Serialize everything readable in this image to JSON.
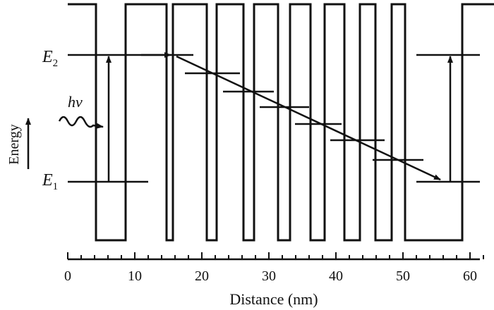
{
  "figure": {
    "energy_label": "Energy",
    "e2_symbol": "E",
    "e2_subscript": "2",
    "e1_symbol": "E",
    "e1_subscript": "1",
    "photon_label": "hν",
    "xlabel": "Distance (nm)",
    "x_ticks": [
      "0",
      "10",
      "20",
      "30",
      "40",
      "50",
      "60"
    ],
    "x_range": [
      0,
      62
    ],
    "colors": {
      "line": "#111111",
      "background": "#ffffff"
    }
  }
}
